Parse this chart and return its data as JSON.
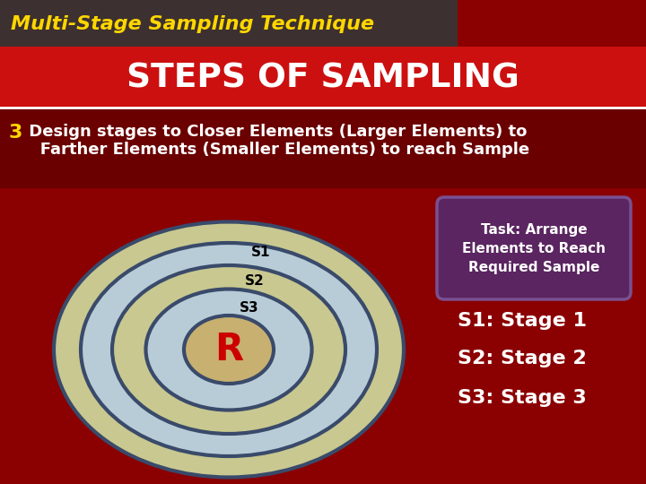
{
  "title_main": "Multi-Stage Sampling Technique",
  "title_sub": "STEPS OF SAMPLING",
  "body_text_bold": "3",
  "body_text_line1": " Design stages to Closer Elements (Larger Elements) to",
  "body_text_line2": "   Farther Elements (Smaller Elements) to reach Sample",
  "bg_color": "#8B0000",
  "header_bg": "#3d3030",
  "banner_bg": "#cc1010",
  "text_section_bg": "#6a0000",
  "ellipse_outline": "#3a4a6a",
  "task_box_bg": "#5a2560",
  "task_box_outline": "#7a5090",
  "task_text": "Task: Arrange\nElements to Reach\nRequired Sample",
  "s1_text": "S1",
  "s2_text": "S2",
  "s3_text": "S3",
  "r_text": "R",
  "stage_labels": [
    "S1: Stage 1",
    "S2: Stage 2",
    "S3: Stage 3"
  ],
  "title_color": "#FFD700",
  "sub_title_color": "#FFFFFF",
  "stage_label_color": "#FFFFFF",
  "task_text_color": "#FFFFFF",
  "body_number_color": "#FFD700",
  "body_text_color": "#FFFFFF",
  "r_color": "#cc0000",
  "olive": "#c8c890",
  "lightblue": "#b8ccd8",
  "center_fill": "#c8b070"
}
